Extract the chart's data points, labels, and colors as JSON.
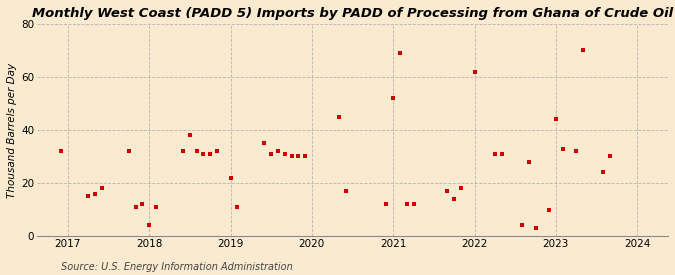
{
  "title": "Monthly West Coast (PADD 5) Imports by PADD of Processing from Ghana of Crude Oil",
  "ylabel": "Thousand Barrels per Day",
  "source": "Source: U.S. Energy Information Administration",
  "background_color": "#faebd0",
  "marker_color": "#cc0000",
  "ylim": [
    0,
    80
  ],
  "yticks": [
    0,
    20,
    40,
    60,
    80
  ],
  "xlim_start": 2016.62,
  "xlim_end": 2024.38,
  "xticks": [
    2017,
    2018,
    2019,
    2020,
    2021,
    2022,
    2023,
    2024
  ],
  "data_x": [
    2016.917,
    2017.25,
    2017.333,
    2017.417,
    2017.75,
    2017.833,
    2017.917,
    2018.0,
    2018.083,
    2018.417,
    2018.5,
    2018.583,
    2018.667,
    2018.75,
    2018.833,
    2019.0,
    2019.083,
    2019.417,
    2019.5,
    2019.583,
    2019.667,
    2019.75,
    2019.833,
    2019.917,
    2020.333,
    2020.417,
    2020.917,
    2021.0,
    2021.083,
    2021.167,
    2021.25,
    2021.667,
    2021.75,
    2021.833,
    2022.0,
    2022.25,
    2022.333,
    2022.583,
    2022.667,
    2022.75,
    2022.917,
    2023.0,
    2023.083,
    2023.25,
    2023.333,
    2023.583,
    2023.667
  ],
  "data_y": [
    32,
    15,
    16,
    18,
    32,
    11,
    12,
    4,
    11,
    32,
    38,
    32,
    31,
    31,
    32,
    22,
    11,
    35,
    31,
    32,
    31,
    30,
    30,
    30,
    45,
    17,
    12,
    52,
    69,
    12,
    12,
    17,
    14,
    18,
    62,
    31,
    31,
    4,
    28,
    3,
    10,
    44,
    33,
    32,
    70,
    24,
    30
  ],
  "title_fontsize": 9.5,
  "axis_fontsize": 7.5,
  "ylabel_fontsize": 7.5,
  "source_fontsize": 7.0,
  "marker_size": 12
}
